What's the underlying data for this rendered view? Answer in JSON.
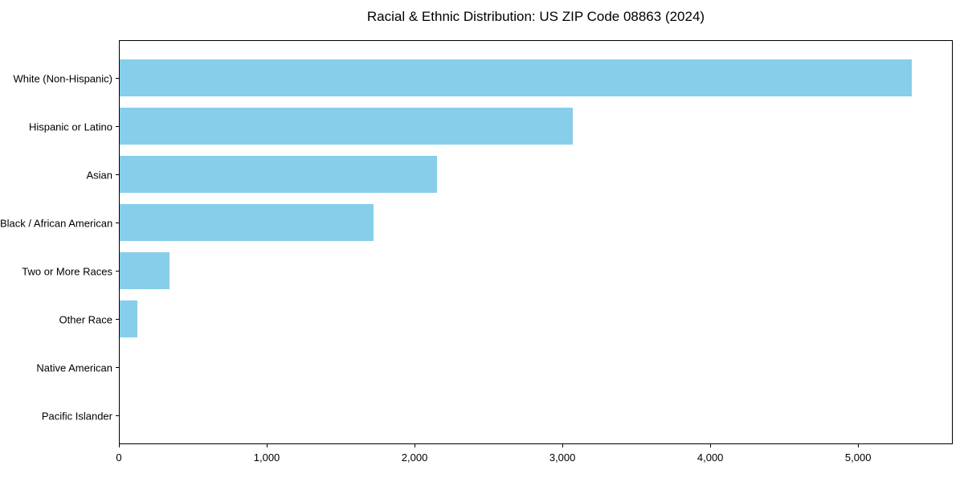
{
  "chart_data": {
    "type": "bar",
    "orientation": "horizontal",
    "title": "Racial & Ethnic Distribution: US ZIP Code 08863 (2024)",
    "categories": [
      "White (Non-Hispanic)",
      "Hispanic or Latino",
      "Asian",
      "Black / African American",
      "Two or More Races",
      "Other Race",
      "Native American",
      "Pacific Islander"
    ],
    "values": [
      5370,
      3070,
      2150,
      1720,
      340,
      120,
      0,
      0
    ],
    "xlabel": "",
    "ylabel": "",
    "xlim": [
      0,
      5640
    ],
    "xticks": [
      0,
      1000,
      2000,
      3000,
      4000,
      5000
    ],
    "xtick_labels": [
      "0",
      "1,000",
      "2,000",
      "3,000",
      "4,000",
      "5,000"
    ],
    "bar_color": "#87CEEB",
    "frame_color": "#000000",
    "text_color": "#000000",
    "background": "#ffffff",
    "grid": false,
    "legend": null
  }
}
